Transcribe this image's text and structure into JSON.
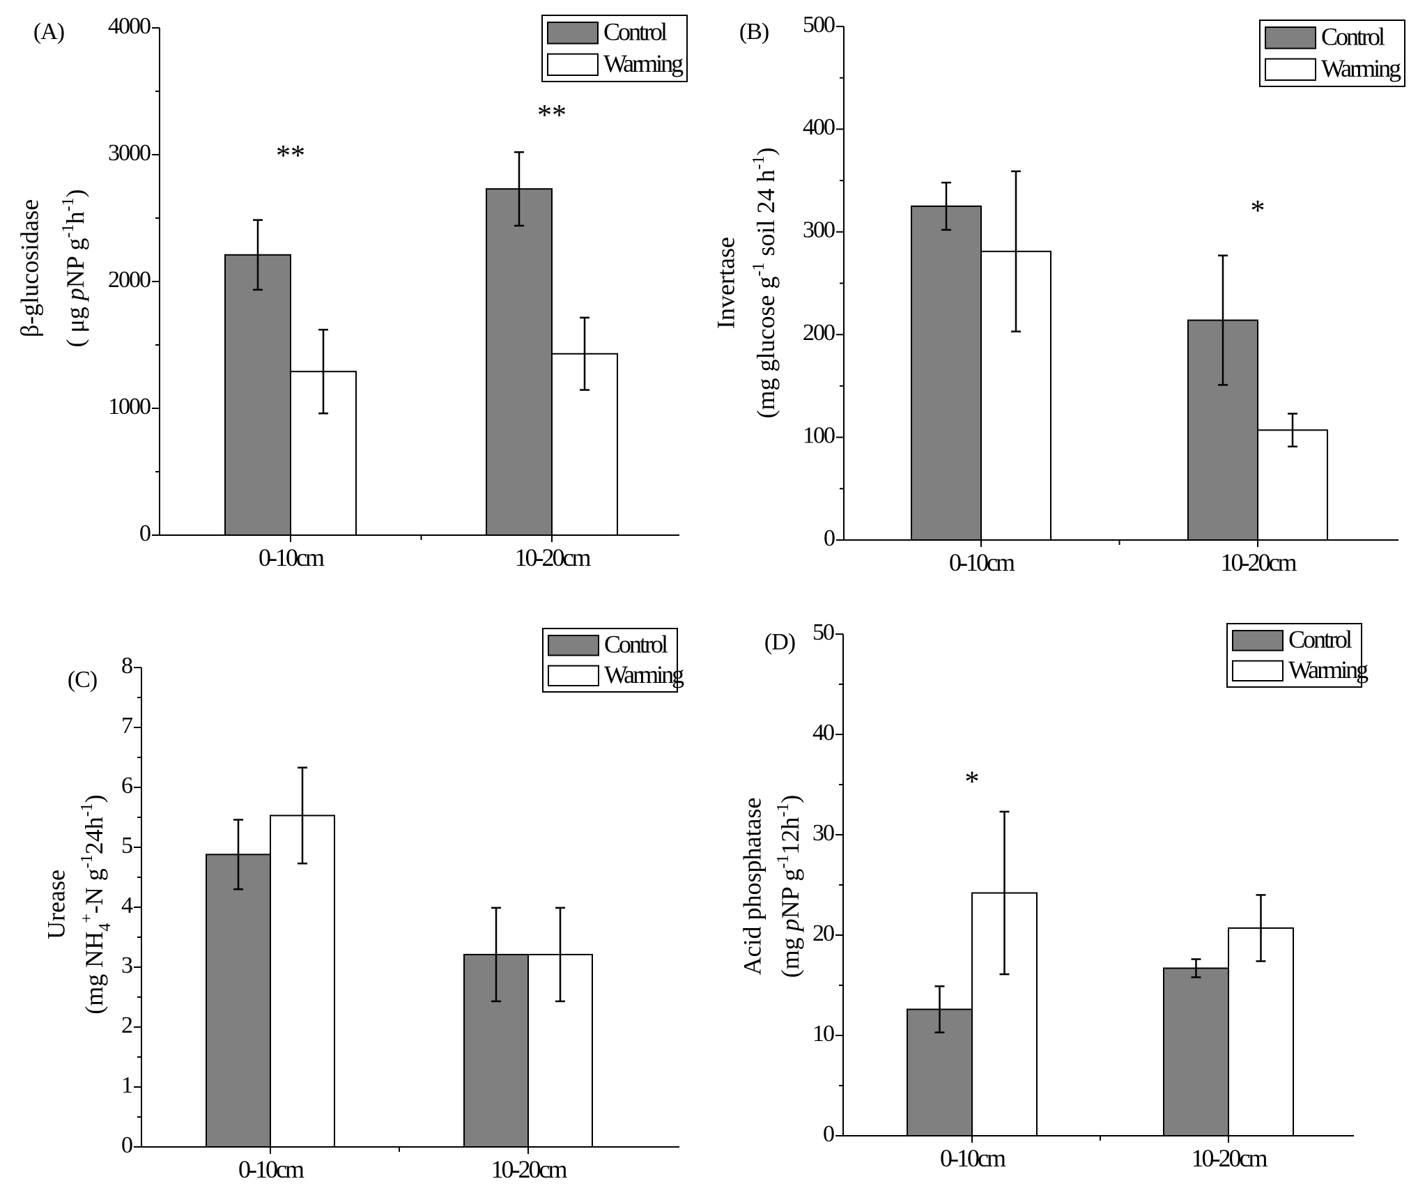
{
  "chart_data": [
    {
      "panel": "(A)",
      "type": "bar",
      "categories": [
        "0-10cm",
        "10-20cm"
      ],
      "series": [
        {
          "name": "Control",
          "color": "#808080",
          "values": [
            2210,
            2730
          ],
          "errors": [
            275,
            290
          ]
        },
        {
          "name": "Warming",
          "color": "#ffffff",
          "values": [
            1290,
            1430
          ],
          "errors": [
            330,
            285
          ]
        }
      ],
      "ylim": [
        0,
        4000
      ],
      "yticks": [
        "0",
        "1000",
        "2000",
        "3000",
        "4000"
      ],
      "ylabel_line1": "β-glucosidase",
      "ylabel_line2": [
        "( ",
        "μg ",
        "p",
        "NP g",
        "-1",
        "h",
        "-1",
        ")"
      ],
      "significance": [
        {
          "category": 0,
          "label": "**",
          "y": 2970
        },
        {
          "category": 1,
          "label": "**",
          "y": 3290
        }
      ],
      "legend": [
        "Control",
        "Warming"
      ]
    },
    {
      "panel": "(B)",
      "type": "bar",
      "categories": [
        "0-10cm",
        "10-20cm"
      ],
      "series": [
        {
          "name": "Control",
          "color": "#808080",
          "values": [
            325,
            214
          ],
          "errors": [
            23,
            63
          ]
        },
        {
          "name": "Warming",
          "color": "#ffffff",
          "values": [
            281,
            107
          ],
          "errors": [
            78,
            16
          ]
        }
      ],
      "ylim": [
        0,
        500
      ],
      "yticks": [
        "0",
        "100",
        "200",
        "300",
        "400",
        "500"
      ],
      "ylabel_line1": "Invertase",
      "ylabel_line2": [
        "(mg glucose g",
        "-1",
        " soil 24 h",
        "-1",
        ")"
      ],
      "significance": [
        {
          "category": 1,
          "label": "*",
          "y": 318
        }
      ],
      "legend": [
        "Control",
        "Warming"
      ]
    },
    {
      "panel": "(C)",
      "type": "bar",
      "categories": [
        "0-10cm",
        "10-20cm"
      ],
      "series": [
        {
          "name": "Control",
          "color": "#808080",
          "values": [
            4.88,
            3.21
          ],
          "errors": [
            0.58,
            0.78
          ]
        },
        {
          "name": "Warming",
          "color": "#ffffff",
          "values": [
            5.53,
            3.21
          ],
          "errors": [
            0.8,
            0.78
          ]
        }
      ],
      "ylim": [
        0,
        8
      ],
      "yticks": [
        "0",
        "1",
        "2",
        "3",
        "4",
        "5",
        "6",
        "7",
        "8"
      ],
      "ylabel_line1": "Urease",
      "ylabel_line2": [
        "(mg NH",
        "4",
        "+",
        "-N g",
        "-1",
        "24h",
        "-1",
        ")"
      ],
      "significance": [],
      "legend": [
        "Control",
        "Warming"
      ]
    },
    {
      "panel": "(D)",
      "type": "bar",
      "categories": [
        "0-10cm",
        "10-20cm"
      ],
      "series": [
        {
          "name": "Control",
          "color": "#808080",
          "values": [
            12.6,
            16.7
          ],
          "errors": [
            2.3,
            0.9
          ]
        },
        {
          "name": "Warming",
          "color": "#ffffff",
          "values": [
            24.2,
            20.7
          ],
          "errors": [
            8.1,
            3.3
          ]
        }
      ],
      "ylim": [
        0,
        50
      ],
      "yticks": [
        "0",
        "10",
        "20",
        "30",
        "40",
        "50"
      ],
      "ylabel_line1": "Acid phosphatase",
      "ylabel_line2": [
        "(mg ",
        "p",
        "NP g",
        "-1",
        "12h",
        "-1",
        ")"
      ],
      "significance": [
        {
          "category": 0,
          "label": "*",
          "y": 35.0
        }
      ],
      "legend": [
        "Control",
        "Warming"
      ]
    }
  ]
}
